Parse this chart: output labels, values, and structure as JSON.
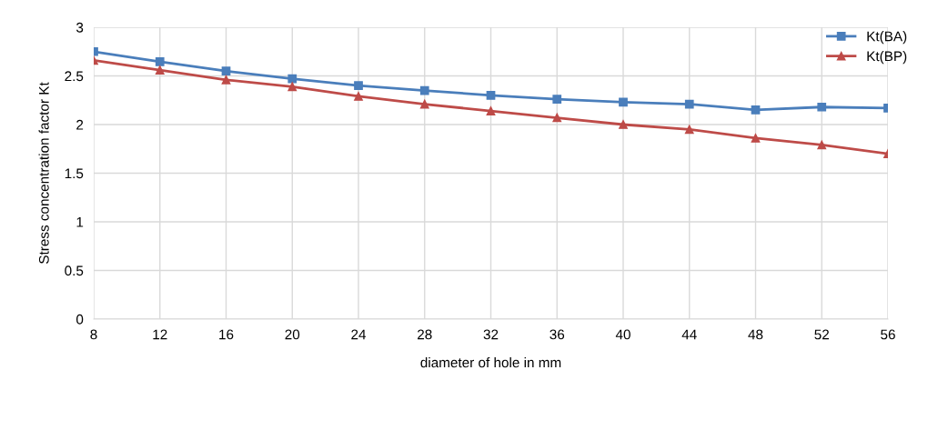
{
  "chart_data": {
    "type": "line",
    "xlabel": "diameter of hole in mm",
    "ylabel": "Stress concentration factor Kt",
    "x": [
      8,
      12,
      16,
      20,
      24,
      28,
      32,
      36,
      40,
      44,
      48,
      52,
      56
    ],
    "series": [
      {
        "name": "Kt(BA)",
        "color": "#4a7ebb",
        "marker": "square",
        "values": [
          2.75,
          2.645,
          2.55,
          2.47,
          2.4,
          2.35,
          2.3,
          2.26,
          2.23,
          2.21,
          2.15,
          2.18,
          2.17
        ]
      },
      {
        "name": "Kt(BP)",
        "color": "#be4b48",
        "marker": "triangle",
        "values": [
          2.66,
          2.56,
          2.46,
          2.39,
          2.29,
          2.21,
          2.14,
          2.07,
          2.0,
          1.95,
          1.86,
          1.79,
          1.7
        ]
      }
    ],
    "xlim": [
      8,
      56
    ],
    "xticks": [
      8,
      12,
      16,
      20,
      24,
      28,
      32,
      36,
      40,
      44,
      48,
      52,
      56
    ],
    "ylim": [
      0,
      3
    ],
    "yticks": [
      0,
      0.5,
      1,
      1.5,
      2,
      2.5,
      3
    ],
    "grid": true,
    "legend": "top right",
    "line_style": "solid"
  }
}
